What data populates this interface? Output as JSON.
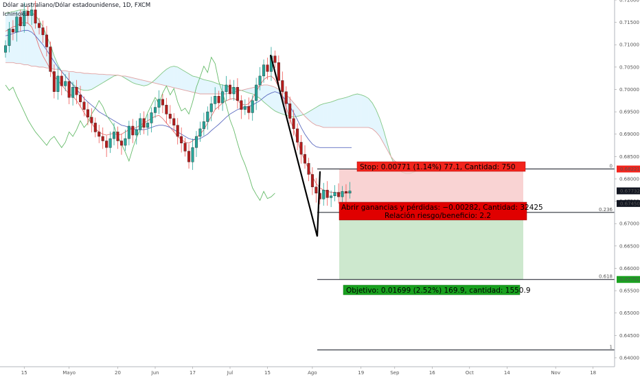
{
  "header": {
    "title": "Dólar australiano/Dólar estadounidense, 1D, FXCM",
    "indicator": "Ichimoku"
  },
  "position": {
    "stop_label": "Stop: 0.00771 (1.14%) 77.1, Cantidad: 750",
    "pnl_label": "Abrir ganancias y pérdidas: −0.00282, Cantidad: 32425",
    "rr_label": "Relación riesgo/beneficio: 2.2",
    "target_label": "Objetivo: 0.01699 (2.52%) 169.9, cantidad: 1550.9",
    "stop_price": 0.68221,
    "entry_price": 0.6745,
    "target_price": 0.65751,
    "current_price": 0.67732,
    "stop_tag": "0.68221",
    "entry_tag": "0.67450",
    "target_tag": "0.65751",
    "current_tag": "0.67732"
  },
  "fib": [
    {
      "label": "0",
      "price": 0.68221
    },
    {
      "label": "0.236",
      "price": 0.6725
    },
    {
      "label": "0.618",
      "price": 0.65751
    },
    {
      "label": "1",
      "price": 0.64175
    }
  ],
  "colors": {
    "up": "#26a69a",
    "down": "#ef5350",
    "bull_body": "#26a69a",
    "bear_body": "#b71c1c",
    "tenkan": "#e57373",
    "kijun": "#5c6bc0",
    "chikou": "#66bb6a",
    "cloud": "#b3e5fc",
    "risk_zone": "#f8c8c8",
    "reward_zone": "#c8e6c9",
    "stop_badge": "#f2241c",
    "target_badge": "#19a11f",
    "entry_badge": "#e00000"
  },
  "chart_data": {
    "type": "candlestick",
    "title": "Dólar australiano/Dólar estadounidense, 1D, FXCM",
    "ylim": [
      0.638,
      0.72
    ],
    "y_ticks": [
      "0.72000",
      "0.71500",
      "0.71000",
      "0.70500",
      "0.70000",
      "0.69500",
      "0.69000",
      "0.68500",
      "0.68000",
      "0.67500",
      "0.67000",
      "0.66500",
      "0.66000",
      "0.65500",
      "0.65000",
      "0.64500",
      "0.64000"
    ],
    "x_ticks": [
      {
        "label": "15",
        "idx": 5
      },
      {
        "label": "Mayo",
        "idx": 17
      },
      {
        "label": "20",
        "idx": 30
      },
      {
        "label": "Jun",
        "idx": 40
      },
      {
        "label": "17",
        "idx": 50
      },
      {
        "label": "Jul",
        "idx": 60
      },
      {
        "label": "15",
        "idx": 70
      },
      {
        "label": "Ago",
        "idx": 82
      },
      {
        "label": "19",
        "idx": 95
      },
      {
        "label": "Sep",
        "idx": 104
      },
      {
        "label": "16",
        "idx": 114
      },
      {
        "label": "Oct",
        "idx": 124
      },
      {
        "label": "14",
        "idx": 134
      },
      {
        "label": "Nov",
        "idx": 147
      },
      {
        "label": "18",
        "idx": 157
      }
    ],
    "candles_close": [
      0.7098,
      0.7135,
      0.7128,
      0.7162,
      0.7142,
      0.7175,
      0.7165,
      0.7178,
      0.7148,
      0.7138,
      0.7122,
      0.7095,
      0.704,
      0.6995,
      0.703,
      0.7008,
      0.7018,
      0.6982,
      0.7005,
      0.6988,
      0.6972,
      0.6955,
      0.6938,
      0.6925,
      0.6905,
      0.6895,
      0.6885,
      0.687,
      0.689,
      0.6905,
      0.6885,
      0.6875,
      0.689,
      0.6918,
      0.6898,
      0.691,
      0.6935,
      0.6915,
      0.6925,
      0.6948,
      0.696,
      0.6978,
      0.6965,
      0.6945,
      0.6935,
      0.692,
      0.6895,
      0.688,
      0.6862,
      0.6838,
      0.687,
      0.6895,
      0.6912,
      0.6928,
      0.695,
      0.6968,
      0.6985,
      0.697,
      0.6995,
      0.701,
      0.699,
      0.7005,
      0.6975,
      0.6955,
      0.6962,
      0.6948,
      0.6975,
      0.701,
      0.703,
      0.7055,
      0.704,
      0.7075,
      0.706,
      0.702,
      0.6995,
      0.6968,
      0.6935,
      0.6912,
      0.6882,
      0.6855,
      0.6835,
      0.681,
      0.6782,
      0.6768,
      0.6755,
      0.6775,
      0.6758,
      0.6762,
      0.677,
      0.676,
      0.6772,
      0.6768,
      0.6773
    ],
    "candles_open_offset_note": "",
    "tenkan": [
      0.713,
      0.7135,
      0.714,
      0.7142,
      0.7148,
      0.715,
      0.7148,
      0.714,
      0.712,
      0.7095,
      0.7075,
      0.706,
      0.7045,
      0.703,
      0.702,
      0.701,
      0.7,
      0.699,
      0.6985,
      0.6975,
      0.6962,
      0.6948,
      0.6935,
      0.6925,
      0.6912,
      0.6905,
      0.69,
      0.6898,
      0.69,
      0.6902,
      0.6898,
      0.69,
      0.6905,
      0.691,
      0.6912,
      0.6915,
      0.692,
      0.6925,
      0.693,
      0.6935,
      0.694,
      0.6942,
      0.6935,
      0.6925,
      0.6915,
      0.6905,
      0.6895,
      0.6888,
      0.6882,
      0.688,
      0.6885,
      0.6892,
      0.69,
      0.691,
      0.6925,
      0.694,
      0.6955,
      0.6962,
      0.697,
      0.6975,
      0.6978,
      0.698,
      0.6975,
      0.6968,
      0.6965,
      0.6968,
      0.698,
      0.6995,
      0.701,
      0.7022,
      0.7028,
      0.703,
      0.7022,
      0.7005,
      0.6985,
      0.696,
      0.6935,
      0.691,
      0.6885,
      0.686,
      0.684,
      0.6822,
      0.6805,
      0.679,
      0.678,
      0.6775,
      0.6772,
      0.677,
      0.677,
      0.6768,
      0.6768,
      0.6768,
      0.677
    ],
    "kijun": [
      0.712,
      0.7122,
      0.7125,
      0.7128,
      0.713,
      0.7132,
      0.7132,
      0.7128,
      0.712,
      0.711,
      0.71,
      0.7088,
      0.7075,
      0.7062,
      0.705,
      0.704,
      0.703,
      0.702,
      0.701,
      0.7,
      0.699,
      0.698,
      0.6972,
      0.6965,
      0.6958,
      0.695,
      0.6945,
      0.694,
      0.6935,
      0.693,
      0.6925,
      0.692,
      0.6918,
      0.6915,
      0.6912,
      0.691,
      0.691,
      0.691,
      0.6912,
      0.6915,
      0.6918,
      0.692,
      0.692,
      0.6918,
      0.6915,
      0.691,
      0.6905,
      0.69,
      0.6895,
      0.689,
      0.6888,
      0.6888,
      0.689,
      0.6895,
      0.69,
      0.6908,
      0.6915,
      0.6922,
      0.693,
      0.6938,
      0.6945,
      0.695,
      0.6955,
      0.6958,
      0.696,
      0.6962,
      0.6965,
      0.697,
      0.6975,
      0.6982,
      0.6988,
      0.6992,
      0.6995,
      0.6992,
      0.6985,
      0.6975,
      0.6962,
      0.6948,
      0.6932,
      0.6915,
      0.69,
      0.6888,
      0.6878,
      0.6872,
      0.687,
      0.687,
      0.687,
      0.687,
      0.687,
      0.687,
      0.687,
      0.687,
      0.687
    ],
    "chikou": [
      0.701,
      0.6998,
      0.7005,
      0.6985,
      0.6968,
      0.695,
      0.6932,
      0.6918,
      0.6905,
      0.6895,
      0.6885,
      0.6875,
      0.6888,
      0.6895,
      0.6882,
      0.687,
      0.6882,
      0.6905,
      0.6895,
      0.691,
      0.693,
      0.6915,
      0.6925,
      0.6945,
      0.6958,
      0.6975,
      0.6962,
      0.6942,
      0.693,
      0.6918,
      0.6895,
      0.6878,
      0.686,
      0.684,
      0.6868,
      0.6892,
      0.691,
      0.6925,
      0.6948,
      0.6965,
      0.6982,
      0.6968,
      0.6992,
      0.7008,
      0.6988,
      0.7002,
      0.6972,
      0.6952,
      0.6958,
      0.6945,
      0.6972,
      0.7005,
      0.7028,
      0.7052,
      0.7038,
      0.7072,
      0.7058,
      0.7018,
      0.6992,
      0.6965,
      0.6932,
      0.691,
      0.688,
      0.6852,
      0.6832,
      0.6808,
      0.678,
      0.6765,
      0.6752,
      0.6772,
      0.6756,
      0.676,
      0.6768
    ],
    "span_a": [
      0.717,
      0.7172,
      0.7174,
      0.7176,
      0.7178,
      0.7178,
      0.7176,
      0.7172,
      0.7165,
      0.7155,
      0.714,
      0.712,
      0.71,
      0.7075,
      0.7055,
      0.704,
      0.703,
      0.702,
      0.7012,
      0.7005,
      0.7,
      0.6998,
      0.6998,
      0.7,
      0.7005,
      0.701,
      0.7015,
      0.702,
      0.7025,
      0.703,
      0.7032,
      0.703,
      0.7025,
      0.702,
      0.7015,
      0.7012,
      0.701,
      0.7008,
      0.701,
      0.7015,
      0.7022,
      0.703,
      0.7038,
      0.7045,
      0.705,
      0.7052,
      0.705,
      0.7045,
      0.704,
      0.7035,
      0.703,
      0.7028,
      0.7025,
      0.7022,
      0.702,
      0.7018,
      0.7015,
      0.7012,
      0.701,
      0.7008,
      0.7005,
      0.7002,
      0.7,
      0.6998,
      0.6995,
      0.6992,
      0.699,
      0.6985,
      0.698,
      0.6972,
      0.6965,
      0.6958,
      0.6952,
      0.6948,
      0.6945,
      0.6942,
      0.694,
      0.6938,
      0.694,
      0.6942,
      0.6945,
      0.695,
      0.6955,
      0.696,
      0.6965,
      0.6968,
      0.697,
      0.6972,
      0.6975,
      0.6978,
      0.698,
      0.6982,
      0.6985,
      0.6988,
      0.699,
      0.6988,
      0.6985,
      0.698,
      0.697,
      0.6955,
      0.6935,
      0.691,
      0.688,
      0.685,
      0.683,
      0.682,
      0.6815,
      0.6812,
      0.6812,
      0.6815,
      0.6818,
      0.6822,
      0.6825,
      0.6828,
      0.683,
      0.683,
      0.683
    ],
    "span_b": [
      0.706,
      0.706,
      0.706,
      0.7058,
      0.7058,
      0.7055,
      0.7055,
      0.7052,
      0.7052,
      0.705,
      0.705,
      0.7048,
      0.7048,
      0.7045,
      0.7045,
      0.7042,
      0.7042,
      0.704,
      0.704,
      0.7038,
      0.7038,
      0.7036,
      0.7036,
      0.7035,
      0.7035,
      0.7034,
      0.7034,
      0.7033,
      0.7033,
      0.7032,
      0.7032,
      0.703,
      0.703,
      0.7028,
      0.7026,
      0.7024,
      0.7022,
      0.702,
      0.7018,
      0.7016,
      0.7014,
      0.7012,
      0.701,
      0.7008,
      0.7006,
      0.7004,
      0.7002,
      0.7,
      0.6998,
      0.6996,
      0.6994,
      0.6992,
      0.699,
      0.699,
      0.699,
      0.699,
      0.699,
      0.699,
      0.699,
      0.699,
      0.6992,
      0.6994,
      0.6996,
      0.6998,
      0.7,
      0.7002,
      0.7004,
      0.7006,
      0.7008,
      0.701,
      0.701,
      0.7008,
      0.7005,
      0.7,
      0.6995,
      0.6988,
      0.698,
      0.697,
      0.696,
      0.695,
      0.694,
      0.6932,
      0.6925,
      0.692,
      0.6918,
      0.6915,
      0.6915,
      0.6915,
      0.6915,
      0.6915,
      0.6915,
      0.6915,
      0.6915,
      0.6915,
      0.6915,
      0.6915,
      0.6915,
      0.6915,
      0.6912,
      0.6905,
      0.6895,
      0.688,
      0.6865,
      0.685,
      0.684,
      0.6835,
      0.6832,
      0.683,
      0.683,
      0.683,
      0.683,
      0.683,
      0.683,
      0.683,
      0.683,
      0.683,
      0.683
    ]
  }
}
